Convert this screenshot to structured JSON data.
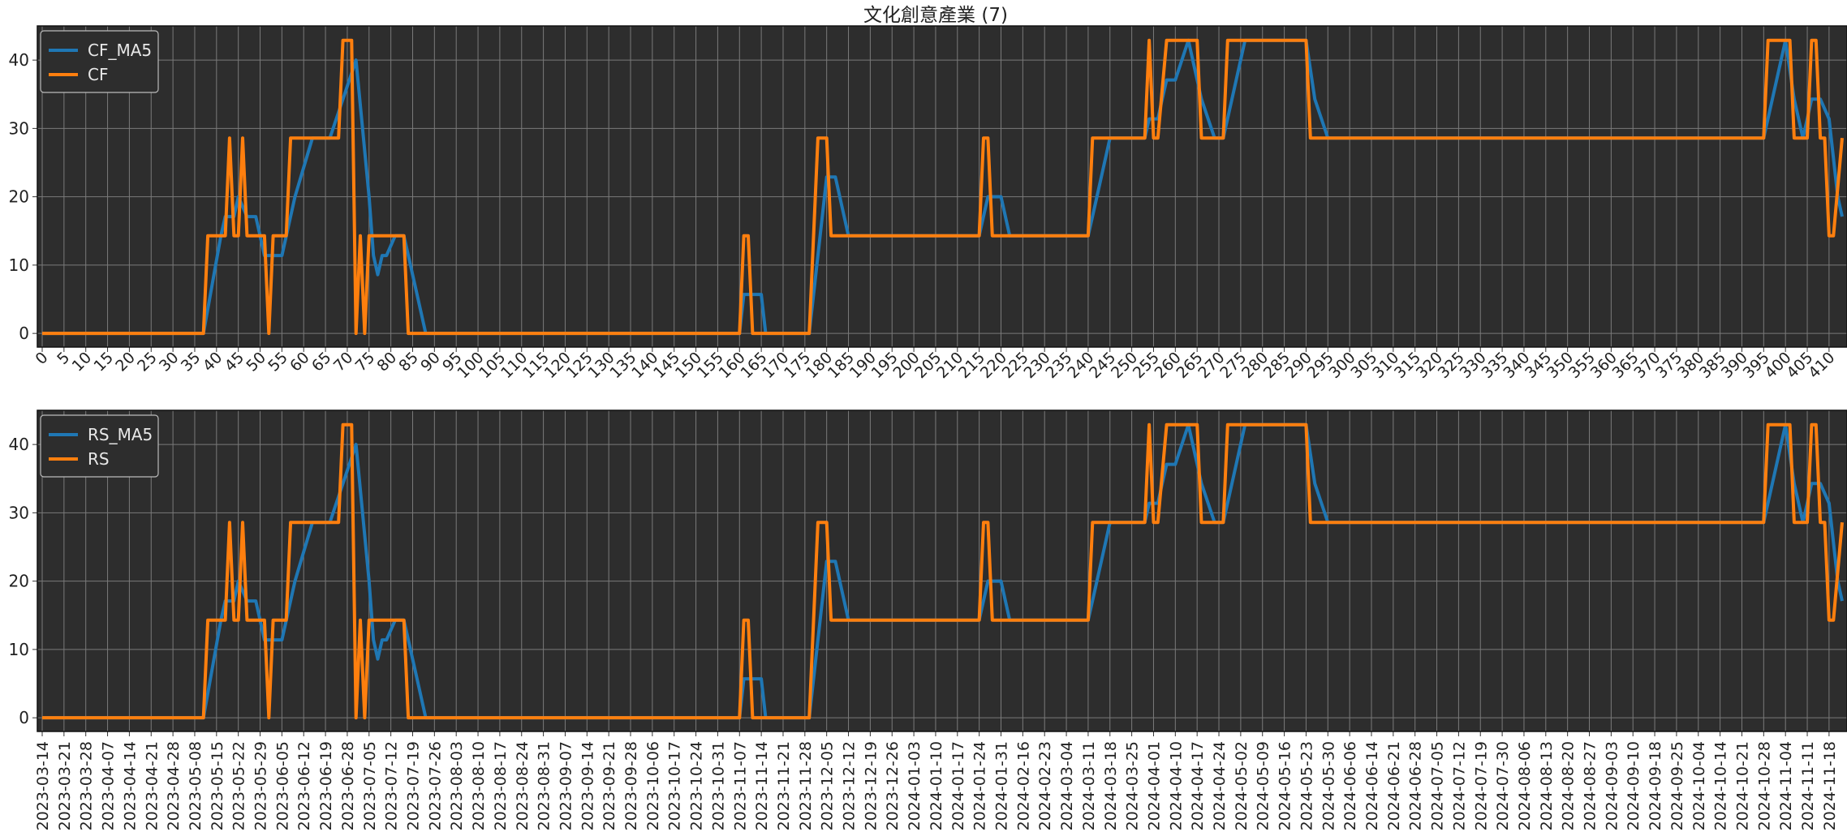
{
  "title": "文化創意產業 (7)",
  "colors": {
    "background": "#ffffff",
    "plot_bg": "#2d2d2d",
    "grid": "#7a7a7a",
    "ma_series": "#1f77b4",
    "raw_series": "#ff7f0e",
    "text": "#222222"
  },
  "chart_data": [
    {
      "type": "line",
      "title": "文化創意產業 (7)",
      "xlabel": "",
      "ylabel": "",
      "xlim": [
        0,
        413
      ],
      "ylim": [
        -2,
        45
      ],
      "yticks": [
        0,
        10,
        20,
        30,
        40
      ],
      "xticks": [
        0,
        5,
        10,
        15,
        20,
        25,
        30,
        35,
        40,
        45,
        50,
        55,
        60,
        65,
        70,
        75,
        80,
        85,
        90,
        95,
        100,
        105,
        110,
        115,
        120,
        125,
        130,
        135,
        140,
        145,
        150,
        155,
        160,
        165,
        170,
        175,
        180,
        185,
        190,
        195,
        200,
        205,
        210,
        215,
        220,
        225,
        230,
        235,
        240,
        245,
        250,
        255,
        260,
        265,
        270,
        275,
        280,
        285,
        290,
        295,
        300,
        305,
        310,
        315,
        320,
        325,
        330,
        335,
        340,
        345,
        350,
        355,
        360,
        365,
        370,
        375,
        380,
        385,
        390,
        395,
        400,
        405,
        410
      ],
      "xtick_labels": [
        "0",
        "5",
        "10",
        "15",
        "20",
        "25",
        "30",
        "35",
        "40",
        "45",
        "50",
        "55",
        "60",
        "65",
        "70",
        "75",
        "80",
        "85",
        "90",
        "95",
        "100",
        "105",
        "110",
        "115",
        "120",
        "125",
        "130",
        "135",
        "140",
        "145",
        "150",
        "155",
        "160",
        "165",
        "170",
        "175",
        "180",
        "185",
        "190",
        "195",
        "200",
        "205",
        "210",
        "215",
        "220",
        "225",
        "230",
        "235",
        "240",
        "245",
        "250",
        "255",
        "260",
        "265",
        "270",
        "275",
        "280",
        "285",
        "290",
        "295",
        "300",
        "305",
        "310",
        "315",
        "320",
        "325",
        "330",
        "335",
        "340",
        "345",
        "350",
        "355",
        "360",
        "365",
        "370",
        "375",
        "380",
        "385",
        "390",
        "395",
        "400",
        "405",
        "410"
      ],
      "grid": true,
      "legend": "upper-left",
      "series": [
        {
          "name": "CF_MA5",
          "color": "#1f77b4",
          "x": [
            0,
            37,
            41,
            42,
            44,
            45,
            47,
            49,
            51,
            53,
            55,
            58,
            62,
            66,
            69,
            72,
            75,
            76,
            77,
            78,
            79,
            81,
            83,
            86,
            88,
            160,
            161,
            163,
            165,
            166,
            176,
            180,
            182,
            185,
            215,
            217,
            220,
            222,
            240,
            242,
            245,
            253,
            254,
            256,
            257,
            258,
            260,
            263,
            266,
            269,
            271,
            273,
            276,
            282,
            286,
            290,
            292,
            295,
            395,
            400,
            402,
            404,
            405,
            406,
            408,
            410,
            412,
            413
          ],
          "y": [
            0,
            0,
            14.3,
            17.1,
            17.1,
            20,
            17.1,
            17.1,
            11.4,
            11.4,
            11.4,
            20,
            28.6,
            28.6,
            34.3,
            40,
            20,
            11.4,
            8.6,
            11.4,
            11.4,
            14.3,
            14.3,
            5.7,
            0,
            0,
            5.7,
            5.7,
            5.7,
            0,
            0,
            22.9,
            22.9,
            14.3,
            14.3,
            20,
            20,
            14.3,
            14.3,
            20,
            28.6,
            28.6,
            31.4,
            31.4,
            34.3,
            37.1,
            37.1,
            42.9,
            34.3,
            28.6,
            28.6,
            34.3,
            42.9,
            42.9,
            42.9,
            42.9,
            34.3,
            28.6,
            28.6,
            42.9,
            34.3,
            28.6,
            31.4,
            34.3,
            34.3,
            31.4,
            20,
            17.1
          ]
        },
        {
          "name": "CF",
          "color": "#ff7f0e",
          "x": [
            0,
            37,
            38,
            42,
            43,
            44,
            45,
            46,
            47,
            51,
            52,
            53,
            56,
            57,
            68,
            69,
            71,
            72,
            73,
            74,
            75,
            76,
            83,
            84,
            160,
            161,
            162,
            163,
            176,
            178,
            180,
            181,
            215,
            216,
            217,
            218,
            240,
            241,
            253,
            254,
            255,
            256,
            258,
            259,
            265,
            266,
            271,
            272,
            290,
            291,
            395,
            396,
            401,
            402,
            405,
            406,
            407,
            408,
            409,
            410,
            411,
            413
          ],
          "y": [
            0,
            0,
            14.3,
            14.3,
            28.6,
            14.3,
            14.3,
            28.6,
            14.3,
            14.3,
            0,
            14.3,
            14.3,
            28.6,
            28.6,
            42.9,
            42.9,
            0,
            14.3,
            0,
            14.3,
            14.3,
            14.3,
            0,
            0,
            14.3,
            14.3,
            0,
            0,
            28.6,
            28.6,
            14.3,
            14.3,
            28.6,
            28.6,
            14.3,
            14.3,
            28.6,
            28.6,
            42.9,
            28.6,
            28.6,
            42.9,
            42.9,
            42.9,
            28.6,
            28.6,
            42.9,
            42.9,
            28.6,
            28.6,
            42.9,
            42.9,
            28.6,
            28.6,
            42.9,
            42.9,
            28.6,
            28.6,
            14.3,
            14.3,
            28.6
          ]
        }
      ]
    },
    {
      "type": "line",
      "title": "",
      "xlabel": "",
      "ylabel": "",
      "xlim": [
        0,
        413
      ],
      "ylim": [
        -2,
        45
      ],
      "yticks": [
        0,
        10,
        20,
        30,
        40
      ],
      "xticks": [
        0,
        5,
        10,
        15,
        20,
        25,
        30,
        35,
        40,
        45,
        50,
        55,
        60,
        65,
        70,
        75,
        80,
        85,
        90,
        95,
        100,
        105,
        110,
        115,
        120,
        125,
        130,
        135,
        140,
        145,
        150,
        155,
        160,
        165,
        170,
        175,
        180,
        185,
        190,
        195,
        200,
        205,
        210,
        215,
        220,
        225,
        230,
        235,
        240,
        245,
        250,
        255,
        260,
        265,
        270,
        275,
        280,
        285,
        290,
        295,
        300,
        305,
        310,
        315,
        320,
        325,
        330,
        335,
        340,
        345,
        350,
        355,
        360,
        365,
        370,
        375,
        380,
        385,
        390,
        395,
        400,
        405,
        410
      ],
      "xtick_labels": [
        "2023-03-14",
        "2023-03-21",
        "2023-03-28",
        "2023-04-07",
        "2023-04-14",
        "2023-04-21",
        "2023-04-28",
        "2023-05-08",
        "2023-05-15",
        "2023-05-22",
        "2023-05-29",
        "2023-06-05",
        "2023-06-12",
        "2023-06-19",
        "2023-06-28",
        "2023-07-05",
        "2023-07-12",
        "2023-07-19",
        "2023-07-26",
        "2023-08-03",
        "2023-08-10",
        "2023-08-17",
        "2023-08-24",
        "2023-08-31",
        "2023-09-07",
        "2023-09-14",
        "2023-09-21",
        "2023-09-28",
        "2023-10-06",
        "2023-10-17",
        "2023-10-24",
        "2023-10-31",
        "2023-11-07",
        "2023-11-14",
        "2023-11-21",
        "2023-11-28",
        "2023-12-05",
        "2023-12-12",
        "2023-12-19",
        "2023-12-26",
        "2024-01-03",
        "2024-01-10",
        "2024-01-17",
        "2024-01-24",
        "2024-01-31",
        "2024-02-16",
        "2024-02-23",
        "2024-03-04",
        "2024-03-11",
        "2024-03-18",
        "2024-03-25",
        "2024-04-01",
        "2024-04-10",
        "2024-04-17",
        "2024-04-24",
        "2024-05-02",
        "2024-05-09",
        "2024-05-16",
        "2024-05-23",
        "2024-05-30",
        "2024-06-06",
        "2024-06-14",
        "2024-06-21",
        "2024-06-28",
        "2024-07-05",
        "2024-07-12",
        "2024-07-19",
        "2024-07-30",
        "2024-08-06",
        "2024-08-13",
        "2024-08-20",
        "2024-08-27",
        "2024-09-03",
        "2024-09-10",
        "2024-09-18",
        "2024-09-25",
        "2024-10-04",
        "2024-10-14",
        "2024-10-21",
        "2024-10-28",
        "2024-11-04",
        "2024-11-11",
        "2024-11-18"
      ],
      "grid": true,
      "legend": "upper-left",
      "series": [
        {
          "name": "RS_MA5",
          "color": "#1f77b4",
          "x": [
            0,
            37,
            41,
            42,
            44,
            45,
            47,
            49,
            51,
            53,
            55,
            58,
            62,
            66,
            69,
            72,
            75,
            76,
            77,
            78,
            79,
            81,
            83,
            86,
            88,
            160,
            161,
            163,
            165,
            166,
            176,
            180,
            182,
            185,
            215,
            217,
            220,
            222,
            240,
            242,
            245,
            253,
            254,
            256,
            257,
            258,
            260,
            263,
            266,
            269,
            271,
            273,
            276,
            282,
            286,
            290,
            292,
            295,
            395,
            400,
            402,
            404,
            405,
            406,
            408,
            410,
            412,
            413
          ],
          "y": [
            0,
            0,
            14.3,
            17.1,
            17.1,
            20,
            17.1,
            17.1,
            11.4,
            11.4,
            11.4,
            20,
            28.6,
            28.6,
            34.3,
            40,
            20,
            11.4,
            8.6,
            11.4,
            11.4,
            14.3,
            14.3,
            5.7,
            0,
            0,
            5.7,
            5.7,
            5.7,
            0,
            0,
            22.9,
            22.9,
            14.3,
            14.3,
            20,
            20,
            14.3,
            14.3,
            20,
            28.6,
            28.6,
            31.4,
            31.4,
            34.3,
            37.1,
            37.1,
            42.9,
            34.3,
            28.6,
            28.6,
            34.3,
            42.9,
            42.9,
            42.9,
            42.9,
            34.3,
            28.6,
            28.6,
            42.9,
            34.3,
            28.6,
            31.4,
            34.3,
            34.3,
            31.4,
            20,
            17.1
          ]
        },
        {
          "name": "RS",
          "color": "#ff7f0e",
          "x": [
            0,
            37,
            38,
            42,
            43,
            44,
            45,
            46,
            47,
            51,
            52,
            53,
            56,
            57,
            68,
            69,
            71,
            72,
            73,
            74,
            75,
            76,
            83,
            84,
            160,
            161,
            162,
            163,
            176,
            178,
            180,
            181,
            215,
            216,
            217,
            218,
            240,
            241,
            253,
            254,
            255,
            256,
            258,
            259,
            265,
            266,
            271,
            272,
            290,
            291,
            395,
            396,
            401,
            402,
            405,
            406,
            407,
            408,
            409,
            410,
            411,
            413
          ],
          "y": [
            0,
            0,
            14.3,
            14.3,
            28.6,
            14.3,
            14.3,
            28.6,
            14.3,
            14.3,
            0,
            14.3,
            14.3,
            28.6,
            28.6,
            42.9,
            42.9,
            0,
            14.3,
            0,
            14.3,
            14.3,
            14.3,
            0,
            0,
            14.3,
            14.3,
            0,
            0,
            28.6,
            28.6,
            14.3,
            14.3,
            28.6,
            28.6,
            14.3,
            14.3,
            28.6,
            28.6,
            42.9,
            28.6,
            28.6,
            42.9,
            42.9,
            42.9,
            28.6,
            28.6,
            42.9,
            42.9,
            28.6,
            28.6,
            42.9,
            42.9,
            28.6,
            28.6,
            42.9,
            42.9,
            28.6,
            28.6,
            14.3,
            14.3,
            28.6
          ]
        }
      ]
    }
  ]
}
